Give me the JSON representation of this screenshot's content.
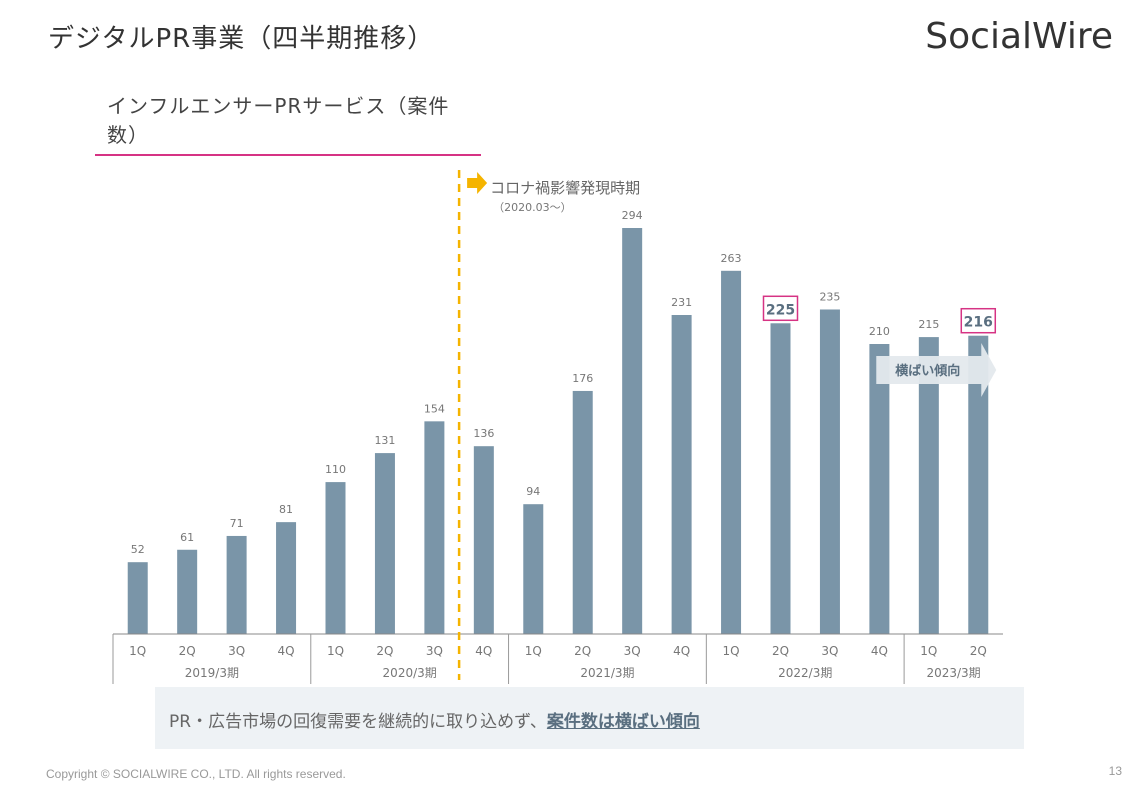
{
  "header": {
    "title": "デジタルPR事業（四半期推移）",
    "logo_text": "SocialWire"
  },
  "chart_data": {
    "type": "bar",
    "title": "インフルエンサーPRサービス（案件数）",
    "categories": [
      "1Q",
      "2Q",
      "3Q",
      "4Q",
      "1Q",
      "2Q",
      "3Q",
      "4Q",
      "1Q",
      "2Q",
      "3Q",
      "4Q",
      "1Q",
      "2Q",
      "3Q",
      "4Q",
      "1Q",
      "2Q"
    ],
    "values": [
      52,
      61,
      71,
      81,
      110,
      131,
      154,
      136,
      94,
      176,
      294,
      231,
      263,
      225,
      235,
      210,
      215,
      216
    ],
    "highlighted_indices": [
      13,
      17
    ],
    "groups": [
      {
        "label": "2019/3期",
        "start": 0,
        "end": 3
      },
      {
        "label": "2020/3期",
        "start": 4,
        "end": 7
      },
      {
        "label": "2021/3期",
        "start": 8,
        "end": 11
      },
      {
        "label": "2022/3期",
        "start": 12,
        "end": 15
      },
      {
        "label": "2023/3期",
        "start": 16,
        "end": 17
      }
    ],
    "annotation": {
      "label": "コロナ禍影響発現時期",
      "sublabel": "（2020.03～）",
      "between_indices": [
        6,
        7
      ]
    },
    "trend_arrow": {
      "label": "横ばい傾向",
      "start": 17,
      "end": 17
    },
    "bar_color": "#7a95a8",
    "highlight_color": "#d63384",
    "annotation_color": "#f5b400",
    "ylim": [
      0,
      320
    ]
  },
  "summary": {
    "text": "PR・広告市場の回復需要を継続的に取り込めず、",
    "highlight": "案件数は横ばい傾向"
  },
  "footer": {
    "copyright": "Copyright © SOCIALWIRE CO., LTD. All rights reserved.",
    "page_number": "13"
  }
}
